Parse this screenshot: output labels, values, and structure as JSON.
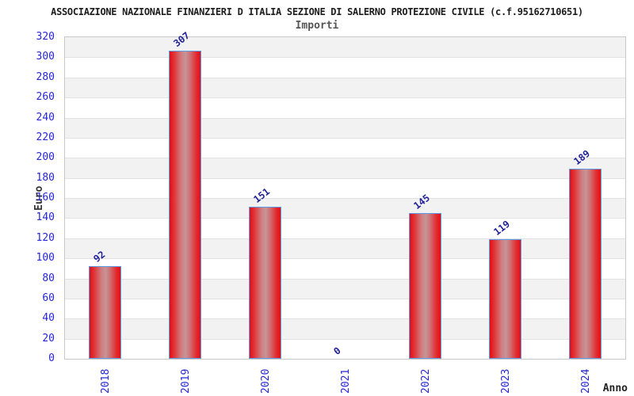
{
  "header": {
    "title": "ASSOCIAZIONE NAZIONALE FINANZIERI D ITALIA SEZIONE DI SALERNO PROTEZIONE CIVILE (c.f.95162710651)",
    "subtitle": "Importi"
  },
  "chart_data": {
    "type": "bar",
    "title": "ASSOCIAZIONE NAZIONALE FINANZIERI D ITALIA SEZIONE DI SALERNO PROTEZIONE CIVILE (c.f.95162710651)",
    "subtitle": "Importi",
    "categories": [
      "2018",
      "2019",
      "2020",
      "2021",
      "2022",
      "2023",
      "2024"
    ],
    "values": [
      92,
      307,
      151,
      0,
      145,
      119,
      189
    ],
    "xlabel": "Anno",
    "ylabel": "Euro",
    "ylim": [
      0,
      320
    ],
    "ytick_step": 20,
    "yticks": [
      0,
      20,
      40,
      60,
      80,
      100,
      120,
      140,
      160,
      180,
      200,
      220,
      240,
      260,
      280,
      300,
      320
    ],
    "grid": "horizontal-alternating-bands",
    "legend": "none",
    "bar_value_labels_rotation_deg": -38,
    "xtick_rotation_deg": -90
  },
  "colors": {
    "bar_edge_red": "#e40d17",
    "bar_highlight": "#c69598",
    "bar_border_blue": "#5b9ce6",
    "tick_label_blue": "#2626d4",
    "value_label_navy": "#232399",
    "band_gray": "#f2f2f2",
    "band_white": "#ffffff",
    "plot_border_gray": "#c9c9c9",
    "title_color": "#1d1d1d",
    "subtitle_gray": "#555555"
  }
}
